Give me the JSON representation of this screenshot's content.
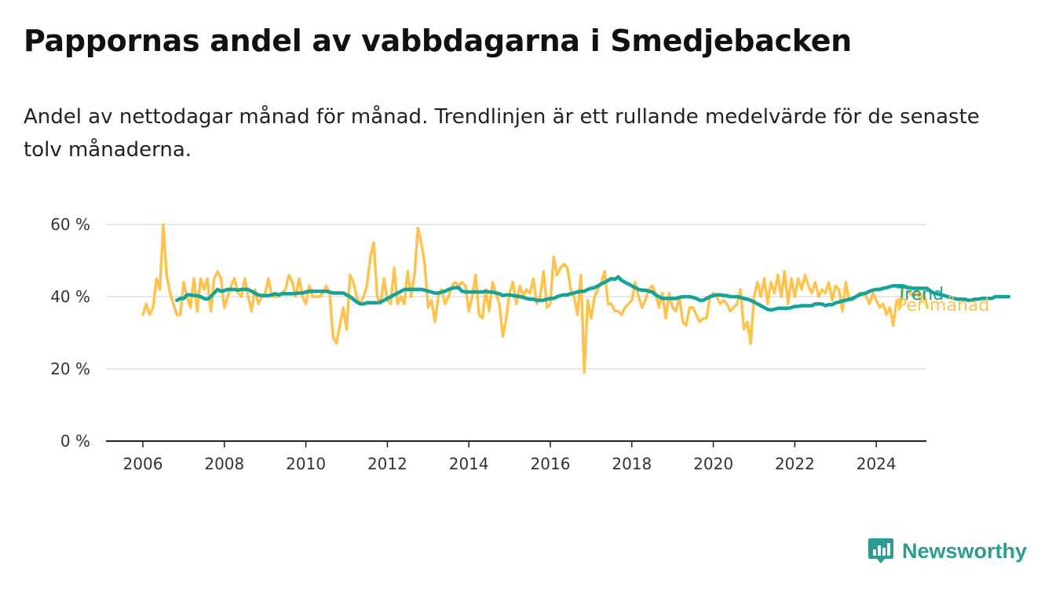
{
  "title": "Pappornas andel av vabbdagarna i Smedjebacken",
  "subtitle": "Andel av nettodagar månad för månad. Trendlinjen är ett rullande medelvärde för de senaste tolv månaderna.",
  "brand": {
    "name": "Newsworthy",
    "icon": "newsworthy-logo-icon"
  },
  "colors": {
    "monthly": "#ffc34d",
    "trend": "#13a399",
    "grid": "#dddddd",
    "axis": "#222222"
  },
  "chart_data": {
    "type": "line",
    "x_axis": {
      "range": [
        "2006-01",
        "2025-01"
      ],
      "ticks": [
        "2006",
        "2008",
        "2010",
        "2012",
        "2014",
        "2016",
        "2018",
        "2020",
        "2022",
        "2024"
      ]
    },
    "y_axis": {
      "range": [
        0,
        60
      ],
      "unit": "%",
      "ticks": [
        0,
        20,
        40,
        60
      ],
      "tick_labels": [
        "0 %",
        "20 %",
        "40 %",
        "60 %"
      ],
      "grid": true
    },
    "legend": "inline-right",
    "series": [
      {
        "name": "Per månad",
        "color": "#ffc34d",
        "start": "2006-01",
        "values": [
          35,
          38,
          35,
          37,
          45,
          42,
          60,
          46,
          41,
          38,
          35,
          35,
          44,
          40,
          37,
          45,
          36,
          45,
          42,
          45,
          36,
          45,
          47,
          45,
          37,
          40,
          43,
          45,
          41,
          40,
          45,
          40,
          36,
          42,
          38,
          40,
          41,
          45,
          40,
          40,
          40,
          41,
          42,
          46,
          44,
          40,
          45,
          40,
          38,
          43,
          40,
          40,
          40,
          41,
          43,
          41,
          29,
          27,
          32,
          37,
          31,
          46,
          44,
          40,
          38,
          40,
          43,
          51,
          55,
          40,
          38,
          45,
          39,
          38,
          48,
          38,
          40,
          38,
          47,
          40,
          46,
          59,
          55,
          49,
          37,
          39,
          33,
          40,
          42,
          38,
          40,
          43,
          44,
          43,
          44,
          43,
          36,
          40,
          46,
          35,
          34,
          42,
          36,
          44,
          41,
          38,
          29,
          34,
          41,
          44,
          38,
          43,
          40,
          42,
          41,
          45,
          38,
          40,
          47,
          37,
          38,
          51,
          46,
          48,
          49,
          48,
          42,
          40,
          35,
          46,
          19,
          39,
          34,
          40,
          42,
          44,
          47,
          38,
          38,
          36,
          36,
          35,
          37,
          38,
          39,
          44,
          40,
          37,
          39,
          42,
          43,
          41,
          37,
          41,
          34,
          41,
          37,
          36,
          40,
          33,
          32,
          37,
          37,
          35,
          33,
          34,
          34,
          40,
          41,
          40,
          38,
          39,
          38,
          36,
          37,
          38,
          42,
          31,
          33,
          27,
          40,
          44,
          40,
          45,
          38,
          44,
          41,
          46,
          40,
          47,
          38,
          45,
          40,
          45,
          42,
          46,
          43,
          41,
          44,
          40,
          42,
          41,
          44,
          39,
          43,
          42,
          36,
          44,
          39,
          39,
          40,
          41,
          41,
          40,
          38,
          41,
          39,
          37,
          38,
          35,
          37,
          32,
          39,
          37,
          43,
          43,
          41,
          40,
          42,
          39,
          41,
          37
        ]
      },
      {
        "name": "Trend",
        "color": "#13a399",
        "start": "2006-11",
        "values": [
          39,
          39.5,
          39.5,
          40.5,
          40.5,
          40.3,
          40.3,
          40,
          39.5,
          39.3,
          40,
          41,
          42,
          41.5,
          41.7,
          42,
          42,
          42,
          41.8,
          42,
          42,
          42,
          41.5,
          41,
          40.5,
          40.3,
          40.3,
          40.3,
          40.5,
          40.8,
          40.5,
          40.8,
          40.8,
          40.8,
          40.8,
          40.9,
          41,
          41,
          41.3,
          41.5,
          41.5,
          41.5,
          41.5,
          41.5,
          41.5,
          41.3,
          41,
          41,
          41,
          41,
          40.5,
          40,
          39.3,
          38.5,
          38,
          38,
          38.3,
          38.3,
          38.3,
          38.3,
          38.5,
          39,
          39.5,
          40,
          40.5,
          41,
          41.5,
          42,
          42,
          42,
          42,
          42,
          42,
          41.8,
          41.5,
          41.3,
          41,
          41,
          41.3,
          41.5,
          42,
          42.3,
          42.5,
          42.5,
          41.5,
          41.3,
          41.3,
          41.3,
          41.3,
          41.3,
          41.3,
          41.5,
          41.3,
          41.3,
          41,
          40.8,
          40.3,
          40.5,
          40.5,
          40.3,
          40.2,
          40,
          39.8,
          39.5,
          39.3,
          39.3,
          39,
          39,
          39,
          39.3,
          39.5,
          39.5,
          40,
          40.3,
          40.5,
          40.5,
          40.8,
          41,
          41.3,
          41.5,
          41.5,
          42,
          42.3,
          42.5,
          43,
          43.5,
          44,
          44.5,
          45,
          44.8,
          45.5,
          44.5,
          44,
          43.5,
          43,
          42.5,
          42,
          41.8,
          41.8,
          41.5,
          41.3,
          40.5,
          40,
          39.5,
          39.5,
          39.5,
          39.5,
          39.5,
          39.8,
          40,
          40,
          40,
          39.8,
          39.5,
          39,
          39,
          39.5,
          40,
          40.3,
          40.5,
          40.5,
          40.3,
          40.3,
          40,
          40,
          40,
          39.8,
          39.5,
          39.3,
          39,
          38.5,
          38,
          37.5,
          37,
          36.5,
          36.3,
          36.5,
          36.8,
          36.8,
          36.8,
          36.8,
          37,
          37.3,
          37.3,
          37.5,
          37.5,
          37.5,
          37.5,
          38,
          38,
          38,
          37.5,
          37.8,
          37.8,
          38.3,
          38.5,
          38.8,
          39,
          39.3,
          39.5,
          40,
          40.5,
          40.8,
          41,
          41.5,
          41.8,
          42,
          42,
          42.3,
          42.5,
          42.8,
          43,
          43,
          43,
          43,
          42.5,
          42.5,
          42.3,
          42.3,
          42.3,
          42.3,
          42.3,
          41.5,
          41,
          40.8,
          40.5,
          40.3,
          40,
          39.8,
          39.5,
          39.3,
          39.3,
          39.3,
          39,
          39,
          39.3,
          39.3,
          39.5,
          39.5,
          39.5,
          39.5,
          40,
          40,
          40,
          40,
          40
        ]
      }
    ]
  }
}
